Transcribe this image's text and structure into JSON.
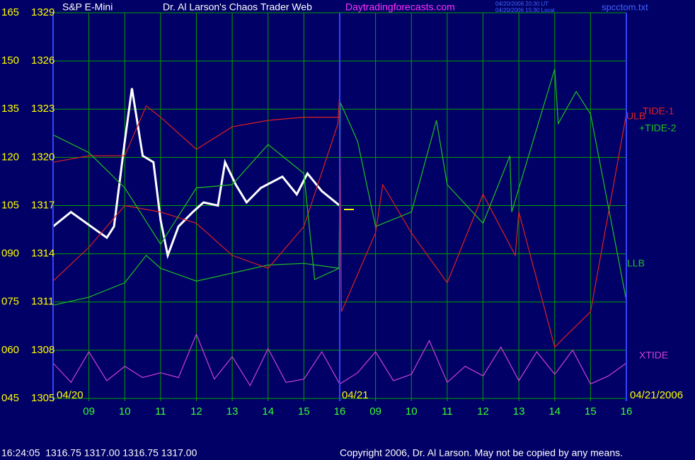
{
  "chart_data": {
    "type": "line",
    "title": "Dr. Al Larson's Chaos Trader Web",
    "site": "Daytradingforecasts.com",
    "timestamp_lines": [
      "04/20/2006 20:30 UT",
      "04/20/2006 15:30 Local"
    ],
    "file_name": "spcctom.txt",
    "date_labels": [
      "04/20",
      "04/21",
      "04/21/2006"
    ],
    "xlim": [
      0,
      16
    ],
    "xticks": [
      {
        "value": 1,
        "label": "09"
      },
      {
        "value": 2,
        "label": "10"
      },
      {
        "value": 3,
        "label": "11"
      },
      {
        "value": 4,
        "label": "12"
      },
      {
        "value": 5,
        "label": "13"
      },
      {
        "value": 6,
        "label": "14"
      },
      {
        "value": 7,
        "label": "15"
      },
      {
        "value": 8,
        "label": "16"
      },
      {
        "value": 9,
        "label": "09"
      },
      {
        "value": 10,
        "label": "10"
      },
      {
        "value": 11,
        "label": "11"
      },
      {
        "value": 12,
        "label": "12"
      },
      {
        "value": 13,
        "label": "13"
      },
      {
        "value": 14,
        "label": "14"
      },
      {
        "value": 15,
        "label": "15"
      },
      {
        "value": 16,
        "label": "16"
      }
    ],
    "ylim": [
      1305,
      1329
    ],
    "yticks": [
      1329,
      1326,
      1323,
      1320,
      1317,
      1314,
      1311,
      1308,
      1305
    ],
    "y2lim": [
      45,
      165
    ],
    "y2ticks": [
      165,
      150,
      135,
      120,
      105,
      {
        "value": 90,
        "label": "090"
      },
      {
        "value": 75,
        "label": "075"
      },
      {
        "value": 60,
        "label": "060"
      },
      {
        "value": 45,
        "label": "045"
      }
    ],
    "grid": true,
    "series": [
      {
        "name": "S&P E-Mini",
        "color": "#ffffff",
        "x": [
          0,
          0.5,
          1,
          1.5,
          1.7,
          2,
          2.2,
          2.5,
          2.8,
          3,
          3.2,
          3.5,
          3.9,
          4.2,
          4.6,
          4.8,
          5.1,
          5.4,
          5.8,
          6.4,
          6.8,
          7.1,
          7.5,
          8
        ],
        "values": [
          1315.7,
          1316.6,
          1315.8,
          1315.0,
          1315.7,
          1321.0,
          1324.3,
          1320.1,
          1319.7,
          1316.1,
          1313.9,
          1315.7,
          1316.6,
          1317.2,
          1317.0,
          1319.7,
          1318.3,
          1317.2,
          1318.1,
          1318.8,
          1317.7,
          1319.0,
          1317.9,
          1317.0
        ]
      },
      {
        "name": "ULB",
        "color": "#e02020",
        "x": [
          0,
          1,
          2,
          2.6,
          3,
          4,
          5,
          6,
          7,
          8
        ],
        "values": [
          1319.7,
          1320.1,
          1320.1,
          1323.2,
          1322.5,
          1320.5,
          1321.9,
          1322.3,
          1322.5,
          1322.5
        ]
      },
      {
        "name": "LLB",
        "color": "#20c020",
        "x": [
          0,
          1,
          2,
          2.6,
          3,
          4,
          5,
          6,
          7,
          8
        ],
        "values": [
          1310.8,
          1311.3,
          1312.2,
          1313.9,
          1313.1,
          1312.3,
          1312.8,
          1313.3,
          1313.4,
          1313.1
        ]
      },
      {
        "name": "TIDE-1",
        "color": "#e02020",
        "x": [
          0,
          1,
          2,
          3,
          4,
          5,
          6,
          7,
          7.95,
          8,
          8.05,
          9,
          9.2,
          10,
          11,
          12,
          12.9,
          13,
          14,
          15,
          16
        ],
        "values": [
          1312.3,
          1314.4,
          1317.0,
          1316.6,
          1315.9,
          1313.9,
          1313.1,
          1315.7,
          1322.1,
          1324.1,
          1310.4,
          1315.3,
          1318.3,
          1315.3,
          1312.2,
          1317.7,
          1313.9,
          1316.6,
          1308.2,
          1310.4,
          1322.7
        ]
      },
      {
        "name": "+TIDE-2",
        "color": "#20c020",
        "x": [
          0,
          1,
          2,
          3,
          4,
          5,
          6,
          7,
          7.3,
          7.98,
          8.02,
          8.5,
          9,
          10,
          10.7,
          11,
          12,
          12.75,
          12.8,
          14,
          14.1,
          14.6,
          15,
          16
        ],
        "values": [
          1321.4,
          1320.3,
          1318.1,
          1314.6,
          1318.1,
          1318.3,
          1320.8,
          1319.0,
          1312.4,
          1313.1,
          1323.4,
          1321.0,
          1315.7,
          1316.6,
          1322.3,
          1318.3,
          1315.9,
          1320.1,
          1316.6,
          1325.5,
          1322.1,
          1324.1,
          1322.7,
          1311.1
        ]
      },
      {
        "name": "XTIDE",
        "color": "#d040d0",
        "x": [
          0,
          0.5,
          1,
          1.5,
          2,
          2.5,
          3,
          3.5,
          4,
          4.5,
          5,
          5.5,
          6,
          6.5,
          7,
          7.5,
          8,
          8.5,
          9,
          9.5,
          10,
          10.5,
          11,
          11.5,
          12,
          12.5,
          13,
          13.5,
          14,
          14.5,
          15,
          15.5,
          16
        ],
        "values": [
          1307.2,
          1306.0,
          1307.9,
          1306.1,
          1307.0,
          1306.3,
          1306.6,
          1306.3,
          1309.0,
          1306.2,
          1307.6,
          1305.8,
          1308.1,
          1306.0,
          1306.2,
          1307.9,
          1305.9,
          1306.6,
          1307.9,
          1306.1,
          1306.5,
          1308.6,
          1306.0,
          1307.0,
          1306.4,
          1308.2,
          1306.1,
          1307.9,
          1306.5,
          1308.0,
          1305.9,
          1306.4,
          1307.2
        ]
      }
    ],
    "quote_line": "16:24:05  1316.75 1317.00 1316.75 1317.00",
    "copyright": "Copyright 2006, Dr. Al Larson. May not be copied by any means."
  }
}
